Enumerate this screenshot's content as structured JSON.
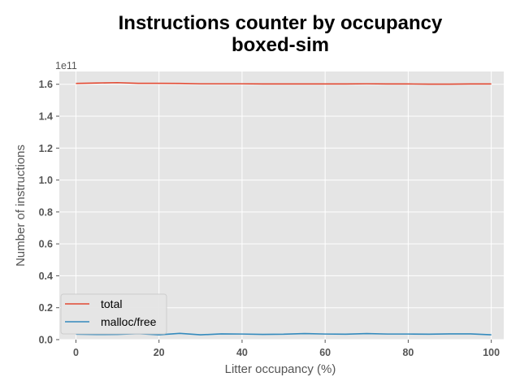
{
  "chart_data": {
    "type": "line",
    "title": "Instructions counter by occupancy",
    "subtitle": "boxed-sim",
    "xlabel": "Litter occupancy (%)",
    "ylabel": "Number of instructions",
    "y_offset_text": "1e11",
    "xlim": [
      -4,
      103
    ],
    "ylim": [
      0,
      1.68
    ],
    "x_ticks": [
      0,
      20,
      40,
      60,
      80,
      100
    ],
    "y_ticks": [
      0.0,
      0.2,
      0.4,
      0.6,
      0.8,
      1.0,
      1.2,
      1.4,
      1.6
    ],
    "x_tick_labels": [
      "0",
      "20",
      "40",
      "60",
      "80",
      "100"
    ],
    "y_tick_labels": [
      "0.0",
      "0.2",
      "0.4",
      "0.6",
      "0.8",
      "1.0",
      "1.2",
      "1.4",
      "1.6"
    ],
    "grid": true,
    "legend_position": "lower-left",
    "background": "#e5e5e5",
    "x": [
      0,
      5,
      10,
      15,
      20,
      25,
      30,
      35,
      40,
      45,
      50,
      55,
      60,
      65,
      70,
      75,
      80,
      85,
      90,
      95,
      100
    ],
    "series": [
      {
        "name": "total",
        "color": "#e24a33",
        "values": [
          1.605,
          1.608,
          1.61,
          1.606,
          1.606,
          1.605,
          1.603,
          1.603,
          1.603,
          1.602,
          1.602,
          1.602,
          1.602,
          1.602,
          1.603,
          1.602,
          1.602,
          1.601,
          1.601,
          1.602,
          1.602
        ]
      },
      {
        "name": "malloc/free",
        "color": "#348abd",
        "values": [
          0.034,
          0.032,
          0.033,
          0.037,
          0.03,
          0.039,
          0.03,
          0.036,
          0.035,
          0.033,
          0.034,
          0.038,
          0.035,
          0.034,
          0.038,
          0.035,
          0.035,
          0.034,
          0.036,
          0.036,
          0.03
        ]
      }
    ]
  }
}
